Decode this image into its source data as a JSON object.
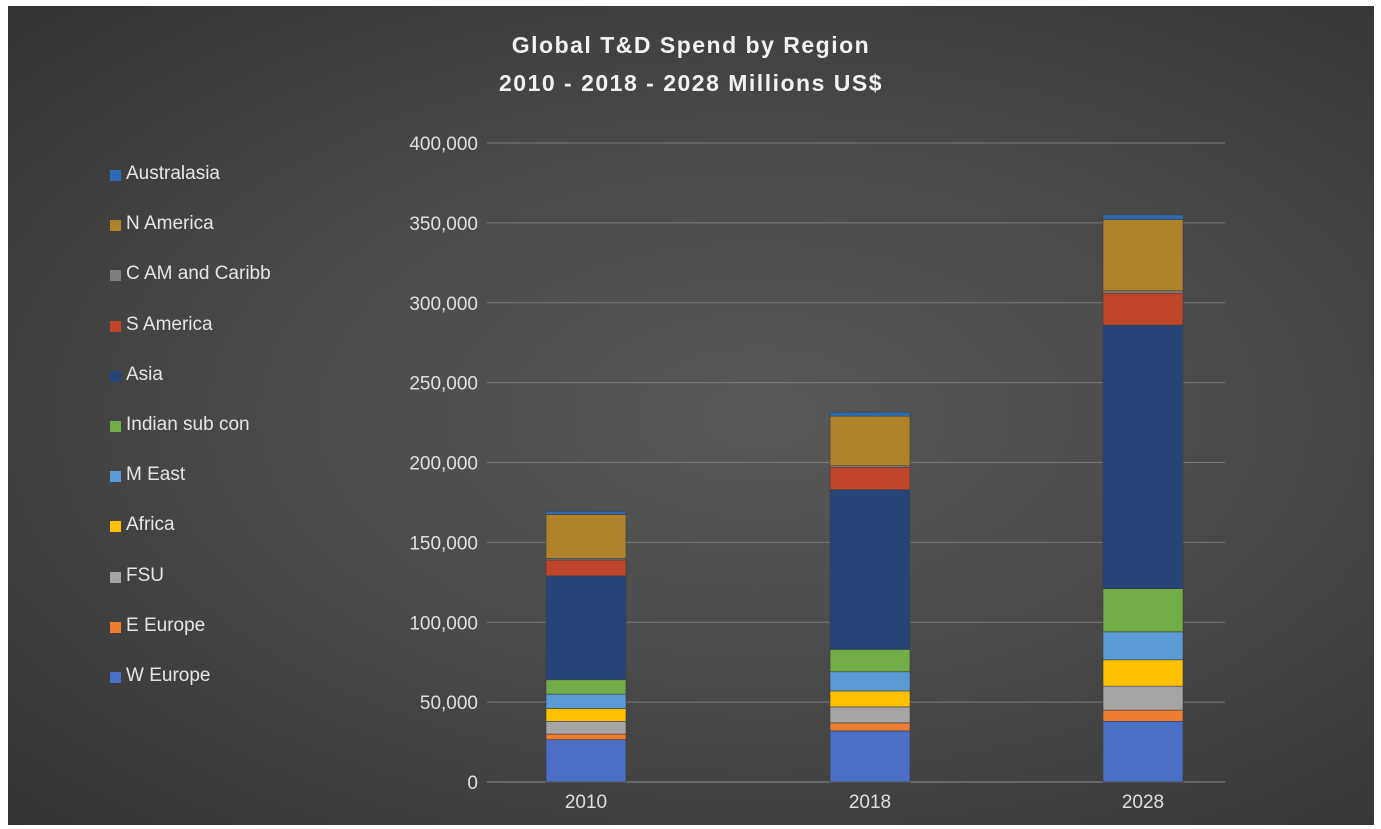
{
  "chart_data": {
    "type": "bar",
    "stacked": true,
    "title": "Global T&D Spend by Region",
    "subtitle": "2010 - 2018 - 2028 Millions US$",
    "xlabel": "",
    "ylabel": "",
    "categories": [
      "2010",
      "2018",
      "2028"
    ],
    "ylim": [
      0,
      400000
    ],
    "yticks": [
      0,
      50000,
      100000,
      150000,
      200000,
      250000,
      300000,
      350000,
      400000
    ],
    "ytick_labels": [
      "0",
      "50,000",
      "100,000",
      "150,000",
      "200,000",
      "250,000",
      "300,000",
      "350,000",
      "400,000"
    ],
    "grid": true,
    "legend_position": "left",
    "series": [
      {
        "name": "W Europe",
        "color": "#4a6fc4",
        "values": [
          26500,
          32000,
          38000
        ]
      },
      {
        "name": "E Europe",
        "color": "#ed7d31",
        "values": [
          3500,
          5000,
          7000
        ]
      },
      {
        "name": "FSU",
        "color": "#a5a5a5",
        "values": [
          8000,
          10000,
          15000
        ]
      },
      {
        "name": "Africa",
        "color": "#ffc000",
        "values": [
          8000,
          10000,
          16500
        ]
      },
      {
        "name": "M East",
        "color": "#5b9bd5",
        "values": [
          9000,
          12000,
          17500
        ]
      },
      {
        "name": "Indian sub con",
        "color": "#70ad47",
        "values": [
          9000,
          14000,
          27000
        ]
      },
      {
        "name": "Asia",
        "color": "#264478",
        "values": [
          65000,
          100000,
          165000
        ]
      },
      {
        "name": "S America",
        "color": "#c0462b",
        "values": [
          10000,
          14000,
          20000
        ]
      },
      {
        "name": "C AM and Caribb",
        "color": "#7f7f7f",
        "values": [
          1000,
          1000,
          1500
        ]
      },
      {
        "name": "N America",
        "color": "#b0832a",
        "values": [
          27500,
          31000,
          44500
        ]
      },
      {
        "name": "Australasia",
        "color": "#2e6bb5",
        "values": [
          2000,
          2500,
          3000
        ]
      }
    ]
  }
}
